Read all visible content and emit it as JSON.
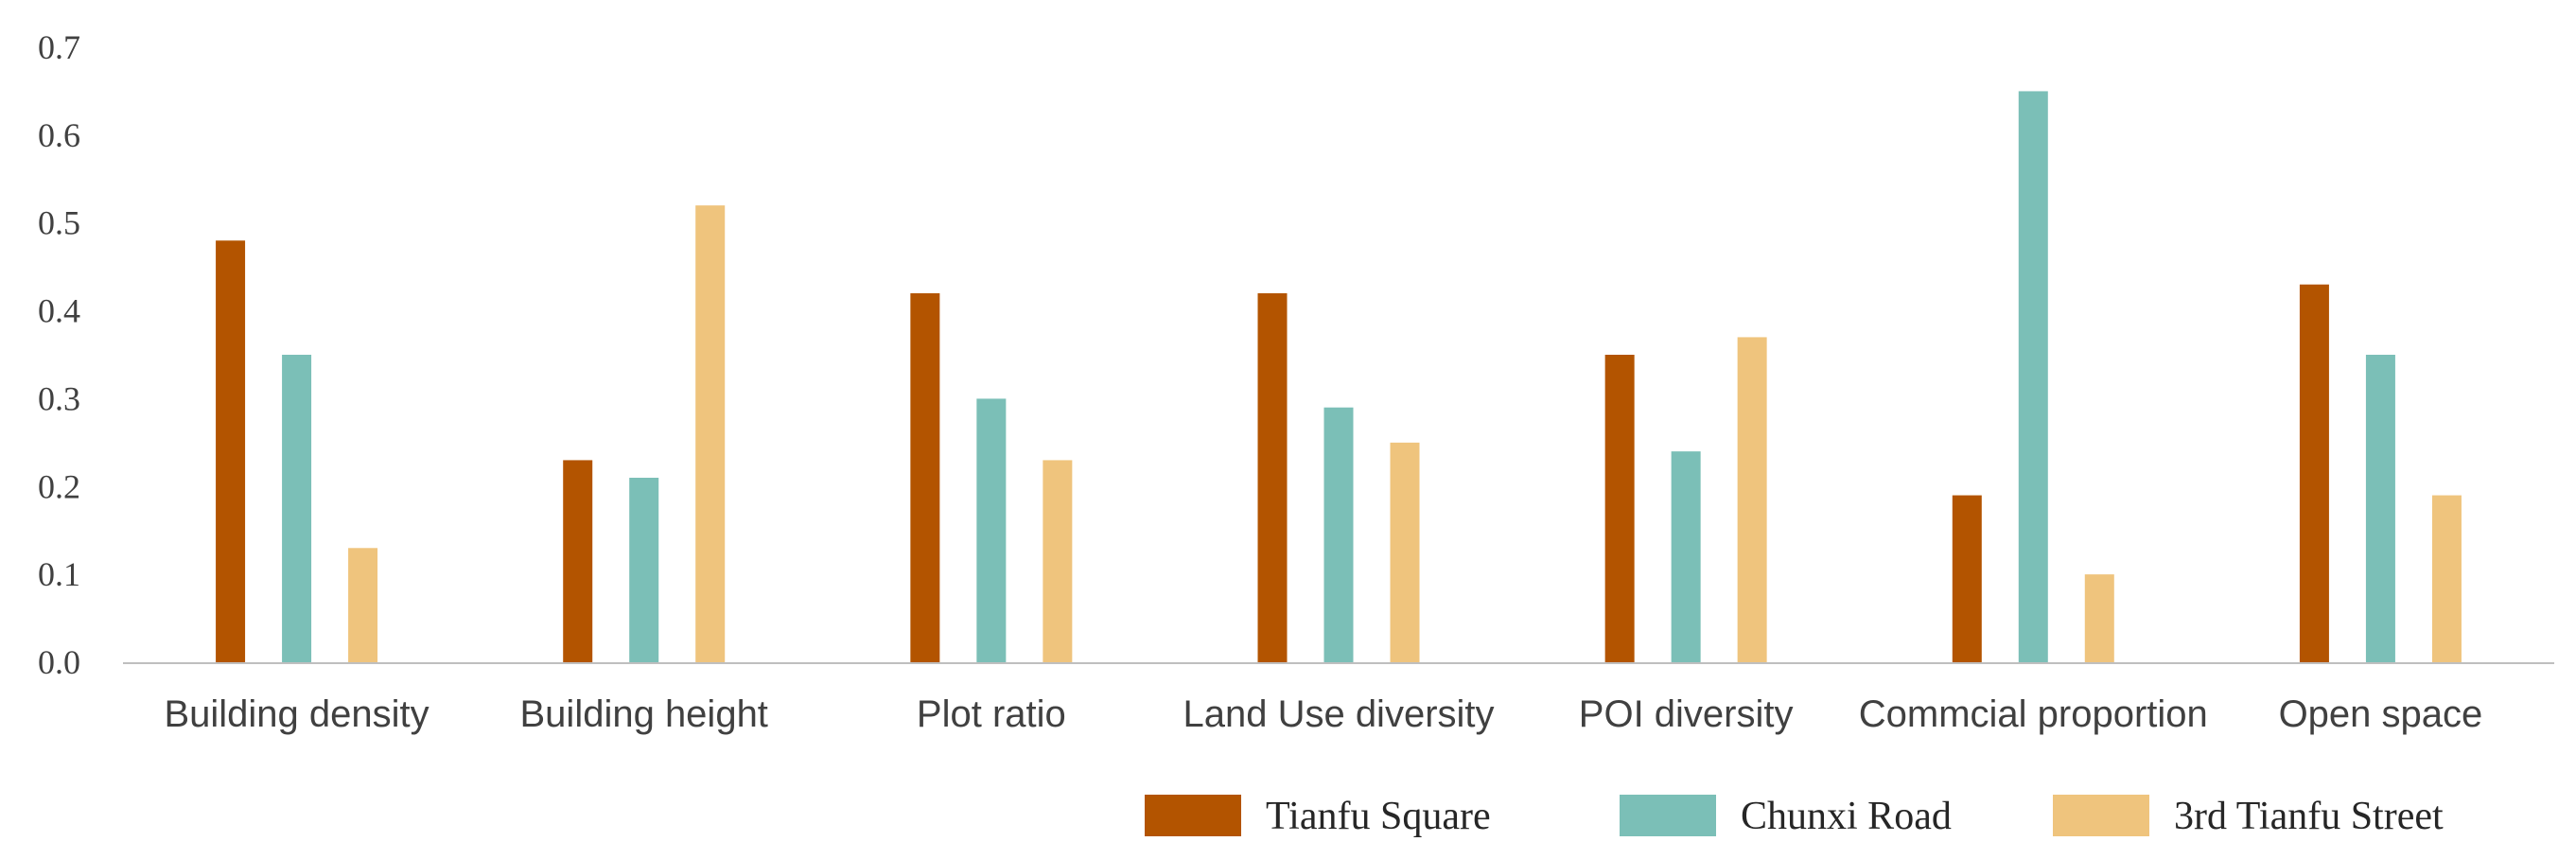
{
  "chart_data": {
    "type": "bar",
    "title": "",
    "xlabel": "",
    "ylabel": "",
    "ylim": [
      0,
      0.7
    ],
    "yticks": [
      "0.0",
      "0.1",
      "0.2",
      "0.3",
      "0.4",
      "0.5",
      "0.6",
      "0.7"
    ],
    "categories": [
      "Building density",
      "Building height",
      "Plot ratio",
      "Land Use diversity",
      "POI diversity",
      "Commcial proportion",
      "Open space"
    ],
    "series": [
      {
        "name": "Tianfu Square",
        "color": "#b35400",
        "values": [
          0.48,
          0.23,
          0.42,
          0.42,
          0.35,
          0.19,
          0.43
        ]
      },
      {
        "name": "Chunxi Road",
        "color": "#7bbfb7",
        "values": [
          0.35,
          0.21,
          0.3,
          0.29,
          0.24,
          0.65,
          0.35
        ]
      },
      {
        "name": "3rd Tianfu Street",
        "color": "#efc47d",
        "values": [
          0.13,
          0.52,
          0.23,
          0.25,
          0.37,
          0.1,
          0.19
        ]
      }
    ],
    "grid": false,
    "legend": "bottom-right"
  }
}
